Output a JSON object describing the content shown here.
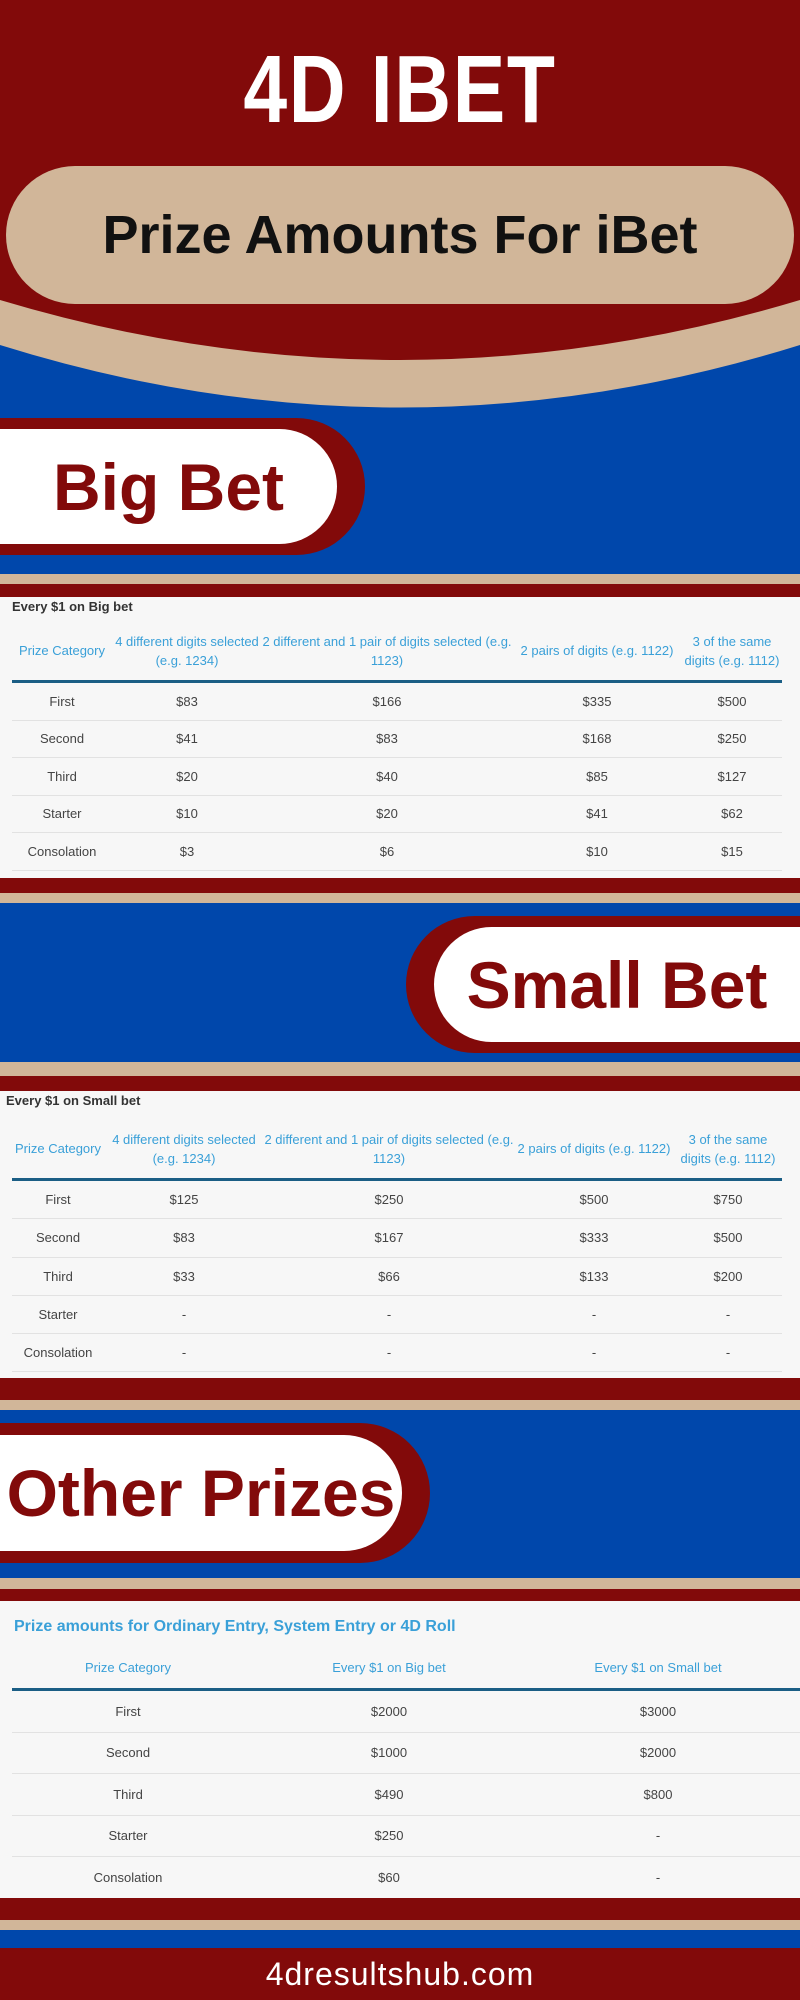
{
  "header": {
    "title": "4D IBET",
    "subtitle": "Prize Amounts For iBet"
  },
  "colors": {
    "red": "#820a0a",
    "tan": "#d1b699",
    "blue": "#0047ab",
    "header_text": "#3aa0d8",
    "rule": "#1b5e85"
  },
  "big": {
    "heading": "Big Bet",
    "caption": "Every $1 on Big bet",
    "columns": [
      "Prize Category",
      "4 different digits selected (e.g. 1234)",
      "2 different and 1 pair of digits selected (e.g. 1123)",
      "2 pairs of digits (e.g. 1122)",
      "3 of the same digits (e.g. 1112)"
    ],
    "rows": [
      [
        "First",
        "$83",
        "$166",
        "$335",
        "$500"
      ],
      [
        "Second",
        "$41",
        "$83",
        "$168",
        "$250"
      ],
      [
        "Third",
        "$20",
        "$40",
        "$85",
        "$127"
      ],
      [
        "Starter",
        "$10",
        "$20",
        "$41",
        "$62"
      ],
      [
        "Consolation",
        "$3",
        "$6",
        "$10",
        "$15"
      ]
    ]
  },
  "small": {
    "heading": "Small Bet",
    "caption": "Every $1 on Small bet",
    "columns": [
      "Prize Category",
      "4 different digits selected (e.g. 1234)",
      "2 different and 1 pair of digits selected (e.g. 1123)",
      "2 pairs of digits (e.g. 1122)",
      "3 of the same digits (e.g. 1112)"
    ],
    "rows": [
      [
        "First",
        "$125",
        "$250",
        "$500",
        "$750"
      ],
      [
        "Second",
        "$83",
        "$167",
        "$333",
        "$500"
      ],
      [
        "Third",
        "$33",
        "$66",
        "$133",
        "$200"
      ],
      [
        "Starter",
        "-",
        "-",
        "-",
        "-"
      ],
      [
        "Consolation",
        "-",
        "-",
        "-",
        "-"
      ]
    ]
  },
  "other": {
    "heading": "Other Prizes",
    "caption": "Prize amounts for Ordinary Entry, System Entry or 4D Roll",
    "columns": [
      "Prize Category",
      "Every $1 on Big bet",
      "Every $1 on Small bet"
    ],
    "rows": [
      [
        "First",
        "$2000",
        "$3000"
      ],
      [
        "Second",
        "$1000",
        "$2000"
      ],
      [
        "Third",
        "$490",
        "$800"
      ],
      [
        "Starter",
        "$250",
        "-"
      ],
      [
        "Consolation",
        "$60",
        "-"
      ]
    ]
  },
  "footer": {
    "site": "4dresultshub.com"
  }
}
